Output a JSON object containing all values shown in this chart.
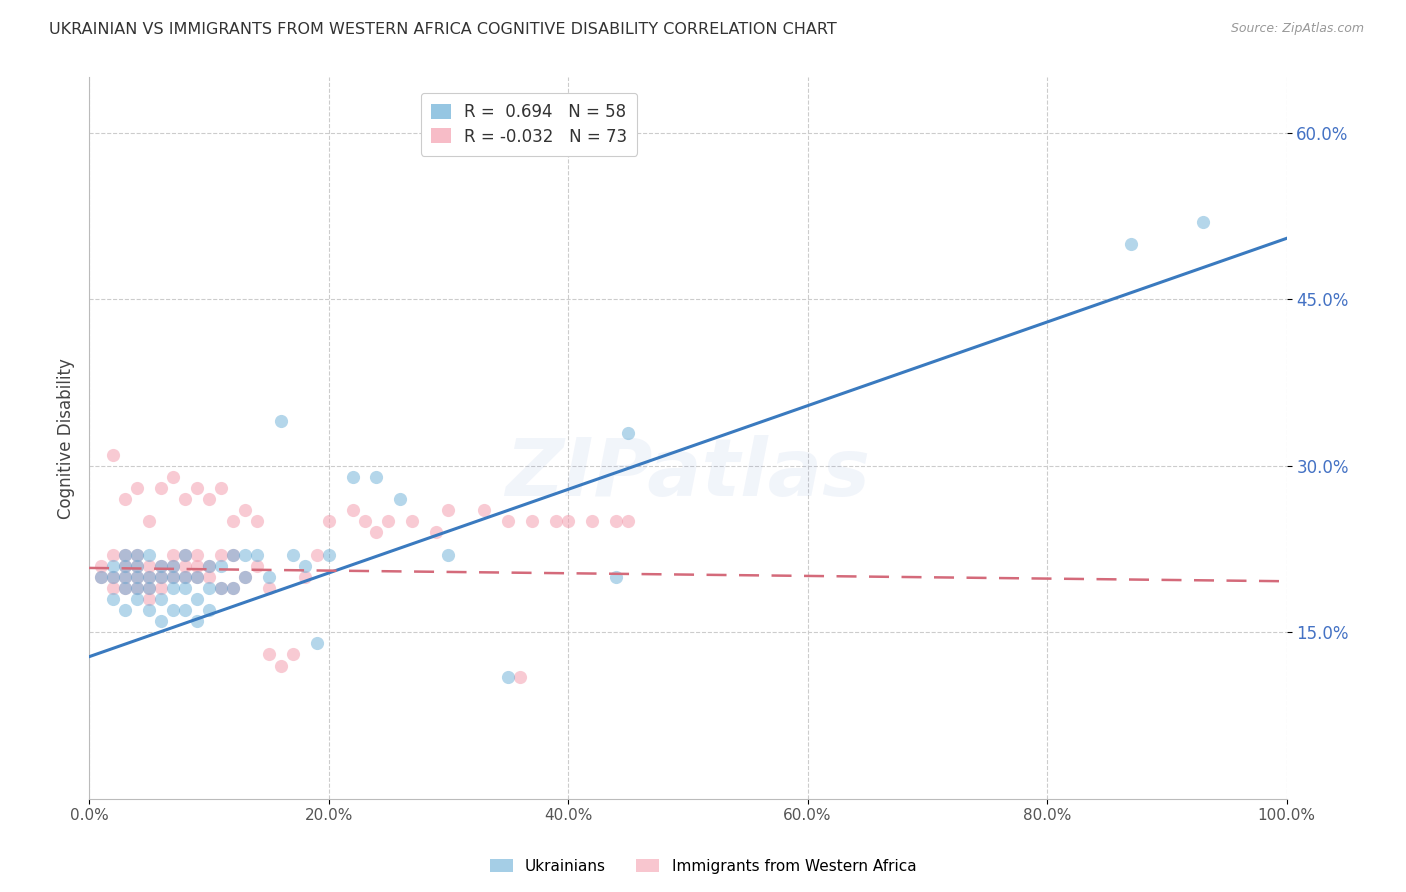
{
  "title": "UKRAINIAN VS IMMIGRANTS FROM WESTERN AFRICA COGNITIVE DISABILITY CORRELATION CHART",
  "source": "Source: ZipAtlas.com",
  "ylabel": "Cognitive Disability",
  "xlabel_ticks": [
    "0.0%",
    "20.0%",
    "40.0%",
    "60.0%",
    "80.0%",
    "100.0%"
  ],
  "xtick_values": [
    0.0,
    0.2,
    0.4,
    0.6,
    0.8,
    1.0
  ],
  "ytick_labels": [
    "15.0%",
    "30.0%",
    "45.0%",
    "60.0%"
  ],
  "ytick_values": [
    0.15,
    0.3,
    0.45,
    0.6
  ],
  "xlim": [
    0.0,
    1.0
  ],
  "ylim": [
    0.0,
    0.65
  ],
  "blue_color": "#6aaed6",
  "pink_color": "#f4a0b0",
  "blue_line_color": "#3a7abf",
  "pink_line_color": "#d46a7a",
  "background_color": "#ffffff",
  "grid_color": "#cccccc",
  "blue_line_x0": 0.0,
  "blue_line_y0": 0.128,
  "blue_line_x1": 1.0,
  "blue_line_y1": 0.505,
  "pink_line_x0": 0.0,
  "pink_line_y0": 0.208,
  "pink_line_x1": 1.0,
  "pink_line_y1": 0.196,
  "ukr_x": [
    0.01,
    0.02,
    0.02,
    0.02,
    0.03,
    0.03,
    0.03,
    0.03,
    0.03,
    0.04,
    0.04,
    0.04,
    0.04,
    0.04,
    0.05,
    0.05,
    0.05,
    0.05,
    0.06,
    0.06,
    0.06,
    0.06,
    0.07,
    0.07,
    0.07,
    0.07,
    0.08,
    0.08,
    0.08,
    0.08,
    0.09,
    0.09,
    0.09,
    0.1,
    0.1,
    0.1,
    0.11,
    0.11,
    0.12,
    0.12,
    0.13,
    0.13,
    0.14,
    0.15,
    0.16,
    0.17,
    0.18,
    0.19,
    0.2,
    0.22,
    0.24,
    0.26,
    0.3,
    0.35,
    0.44,
    0.45,
    0.87,
    0.93
  ],
  "ukr_y": [
    0.2,
    0.18,
    0.2,
    0.21,
    0.17,
    0.19,
    0.2,
    0.21,
    0.22,
    0.18,
    0.19,
    0.2,
    0.21,
    0.22,
    0.17,
    0.19,
    0.2,
    0.22,
    0.16,
    0.18,
    0.2,
    0.21,
    0.17,
    0.19,
    0.2,
    0.21,
    0.17,
    0.19,
    0.2,
    0.22,
    0.16,
    0.18,
    0.2,
    0.17,
    0.19,
    0.21,
    0.19,
    0.21,
    0.19,
    0.22,
    0.2,
    0.22,
    0.22,
    0.2,
    0.34,
    0.22,
    0.21,
    0.14,
    0.22,
    0.29,
    0.29,
    0.27,
    0.22,
    0.11,
    0.2,
    0.33,
    0.5,
    0.52
  ],
  "waf_x": [
    0.01,
    0.01,
    0.02,
    0.02,
    0.02,
    0.02,
    0.03,
    0.03,
    0.03,
    0.03,
    0.03,
    0.04,
    0.04,
    0.04,
    0.04,
    0.04,
    0.05,
    0.05,
    0.05,
    0.05,
    0.05,
    0.06,
    0.06,
    0.06,
    0.06,
    0.07,
    0.07,
    0.07,
    0.07,
    0.08,
    0.08,
    0.08,
    0.08,
    0.09,
    0.09,
    0.09,
    0.09,
    0.1,
    0.1,
    0.1,
    0.11,
    0.11,
    0.11,
    0.12,
    0.12,
    0.12,
    0.13,
    0.13,
    0.14,
    0.14,
    0.15,
    0.15,
    0.16,
    0.17,
    0.18,
    0.19,
    0.2,
    0.22,
    0.23,
    0.24,
    0.25,
    0.27,
    0.29,
    0.3,
    0.33,
    0.35,
    0.36,
    0.37,
    0.39,
    0.4,
    0.42,
    0.44,
    0.45
  ],
  "waf_y": [
    0.2,
    0.21,
    0.19,
    0.2,
    0.22,
    0.31,
    0.19,
    0.2,
    0.21,
    0.22,
    0.27,
    0.19,
    0.2,
    0.21,
    0.22,
    0.28,
    0.18,
    0.19,
    0.2,
    0.21,
    0.25,
    0.19,
    0.2,
    0.21,
    0.28,
    0.2,
    0.21,
    0.22,
    0.29,
    0.2,
    0.21,
    0.22,
    0.27,
    0.2,
    0.21,
    0.22,
    0.28,
    0.2,
    0.21,
    0.27,
    0.19,
    0.22,
    0.28,
    0.19,
    0.22,
    0.25,
    0.2,
    0.26,
    0.21,
    0.25,
    0.19,
    0.13,
    0.12,
    0.13,
    0.2,
    0.22,
    0.25,
    0.26,
    0.25,
    0.24,
    0.25,
    0.25,
    0.24,
    0.26,
    0.26,
    0.25,
    0.11,
    0.25,
    0.25,
    0.25,
    0.25,
    0.25,
    0.25
  ]
}
